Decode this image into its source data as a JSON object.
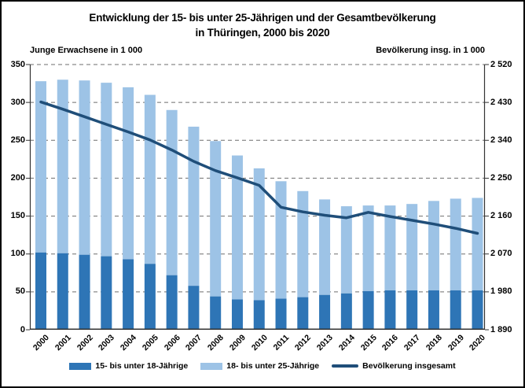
{
  "title": {
    "line1": "Entwicklung der 15- bis unter 25-Jährigen und der Gesamtbevölkerung",
    "line2": "in Thüringen, 2000 bis 2020"
  },
  "colors": {
    "bar_dark": "#2E75B6",
    "bar_light": "#9DC3E6",
    "line": "#1F4E79",
    "grid": "#6e6e6e",
    "axis": "#333333"
  },
  "chart_data": {
    "type": "bar",
    "subtype": "stacked bars with overlaid line (dual axis)",
    "title": "Entwicklung der 15- bis unter 25-Jährigen und der Gesamtbevölkerung in Thüringen, 2000 bis 2020",
    "categories": [
      "2000",
      "2001",
      "2002",
      "2003",
      "2004",
      "2005",
      "2006",
      "2007",
      "2008",
      "2009",
      "2010",
      "2011",
      "2012",
      "2013",
      "2014",
      "2015",
      "2016",
      "2017",
      "2018",
      "2019",
      "2020"
    ],
    "series": [
      {
        "name": "15- bis unter 18-Jährige",
        "type": "bar-stack",
        "axis": "left",
        "color": "#2E75B6",
        "values": [
          102,
          101,
          99,
          97,
          93,
          87,
          72,
          58,
          44,
          40,
          39,
          41,
          43,
          46,
          48,
          51,
          52,
          52,
          52,
          52,
          52
        ]
      },
      {
        "name": "18- bis unter 25-Jährige",
        "type": "bar-stack",
        "axis": "left",
        "color": "#9DC3E6",
        "values": [
          226,
          229,
          230,
          229,
          227,
          223,
          218,
          210,
          205,
          190,
          174,
          155,
          140,
          126,
          115,
          113,
          112,
          114,
          118,
          121,
          122
        ]
      },
      {
        "name": "Bevölkerung insgesamt",
        "type": "line",
        "axis": "right",
        "color": "#1F4E79",
        "values": [
          2431,
          2414,
          2396,
          2378,
          2360,
          2341,
          2317,
          2290,
          2268,
          2251,
          2233,
          2181,
          2170,
          2162,
          2156,
          2169,
          2159,
          2150,
          2141,
          2131,
          2119
        ]
      }
    ],
    "left_axis": {
      "label": "Junge Erwachsene in 1 000",
      "min": 0,
      "max": 350,
      "tick_step": 50,
      "ticks": [
        0,
        50,
        100,
        150,
        200,
        250,
        300,
        350
      ],
      "tick_labels": [
        "0",
        "50",
        "100",
        "150",
        "200",
        "250",
        "300",
        "350"
      ]
    },
    "right_axis": {
      "label": "Bevölkerung insg. in 1 000",
      "min": 1890,
      "max": 2520,
      "tick_step": 90,
      "ticks": [
        1890,
        1980,
        2070,
        2160,
        2250,
        2340,
        2430,
        2520
      ],
      "tick_labels": [
        "1 890",
        "1 980",
        "2 070",
        "2 160",
        "2 250",
        "2 340",
        "2 430",
        "2 520"
      ]
    },
    "grid": "dashed horizontal gridlines at left-axis ticks",
    "legend_position": "bottom center"
  }
}
